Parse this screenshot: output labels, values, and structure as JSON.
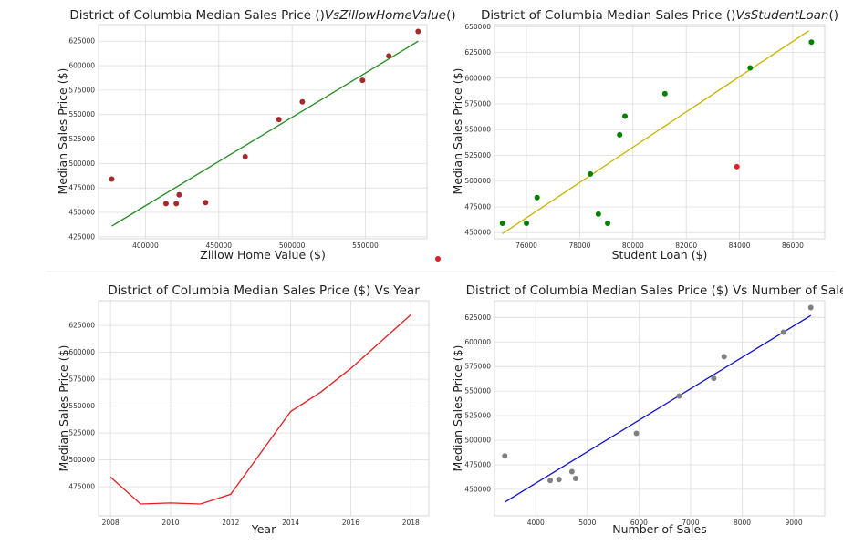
{
  "chart_data": [
    {
      "type": "scatter",
      "title_prefix": "District of Columbia Median Sales Price ()",
      "title_math": "VsZillowHomeValue",
      "title_suffix": "()",
      "xlabel": "Zillow Home Value ($)",
      "ylabel": "Median Sales Price ($)",
      "xlim": [
        368000,
        592000
      ],
      "ylim": [
        423000,
        642000
      ],
      "xticks": [
        400000,
        450000,
        500000,
        550000
      ],
      "yticks": [
        425000,
        450000,
        475000,
        500000,
        525000,
        550000,
        575000,
        600000,
        625000
      ],
      "grid": true,
      "point_color": "#a52a2a",
      "fit_color": "#228b22",
      "x": [
        377000,
        414000,
        421000,
        423000,
        441000,
        468000,
        491000,
        507000,
        548000,
        566000,
        586000
      ],
      "y": [
        484000,
        459000,
        459000,
        468000,
        460000,
        507000,
        545000,
        563000,
        585000,
        610000,
        635000
      ],
      "fit": {
        "x": [
          377000,
          586000
        ],
        "y": [
          436000,
          625000
        ]
      }
    },
    {
      "type": "scatter",
      "title_prefix": "District of Columbia Median Sales Price ()",
      "title_math": "VsStudentLoan",
      "title_suffix": "()",
      "xlabel": "Student Loan ($)",
      "ylabel": "Median Sales Price ($)",
      "xlim": [
        74800,
        87200
      ],
      "ylim": [
        444000,
        652000
      ],
      "xticks": [
        76000,
        78000,
        80000,
        82000,
        84000,
        86000
      ],
      "yticks": [
        450000,
        475000,
        500000,
        525000,
        550000,
        575000,
        600000,
        625000,
        650000
      ],
      "grid": true,
      "point_color": "#008000",
      "outlier_color": "#dd2222",
      "fit_color": "#c8b400",
      "x": [
        75100,
        76000,
        76400,
        78400,
        78700,
        79050,
        79500,
        79700,
        81200,
        84400,
        86700
      ],
      "y": [
        459000,
        459000,
        484000,
        507000,
        468000,
        459000,
        545000,
        563000,
        585000,
        610000,
        635000
      ],
      "outlier": {
        "x": 83900,
        "y": 514000
      },
      "fit": {
        "x": [
          75100,
          86600
        ],
        "y": [
          449000,
          646000
        ]
      }
    },
    {
      "type": "line",
      "title": "District of Columbia Median Sales Price ($) Vs Year",
      "xlabel": "Year",
      "ylabel": "Median Sales Price ($)",
      "xlim": [
        2007.6,
        2018.6
      ],
      "ylim": [
        448000,
        648000
      ],
      "xticks": [
        2008,
        2010,
        2012,
        2014,
        2016,
        2018
      ],
      "yticks": [
        475000,
        500000,
        525000,
        550000,
        575000,
        600000,
        625000
      ],
      "grid": true,
      "line_color": "#e02020",
      "x": [
        2008,
        2009,
        2010,
        2011,
        2012,
        2014,
        2015,
        2016,
        2018
      ],
      "y": [
        484000,
        459000,
        460000,
        459000,
        468000,
        545000,
        563000,
        585000,
        635000
      ]
    },
    {
      "type": "scatter",
      "title": "District of Columbia Median Sales Price ($) Vs Number of Sales",
      "xlabel": "Number of Sales",
      "ylabel": "Median Sales Price ($)",
      "xlim": [
        3200,
        9600
      ],
      "ylim": [
        423000,
        642000
      ],
      "xticks": [
        4000,
        5000,
        6000,
        7000,
        8000,
        9000
      ],
      "yticks": [
        450000,
        475000,
        500000,
        525000,
        550000,
        575000,
        600000,
        625000
      ],
      "grid": true,
      "point_color": "#808080",
      "fit_color": "#1010cc",
      "x": [
        3400,
        4280,
        4450,
        4700,
        4770,
        5950,
        6780,
        7450,
        7650,
        8800,
        9330
      ],
      "y": [
        484000,
        459000,
        460000,
        468000,
        461000,
        507000,
        545000,
        563000,
        585000,
        610000,
        635000
      ],
      "fit": {
        "x": [
          3400,
          9330
        ],
        "y": [
          437000,
          627000
        ]
      }
    }
  ],
  "stray_point_color": "#dd2222"
}
